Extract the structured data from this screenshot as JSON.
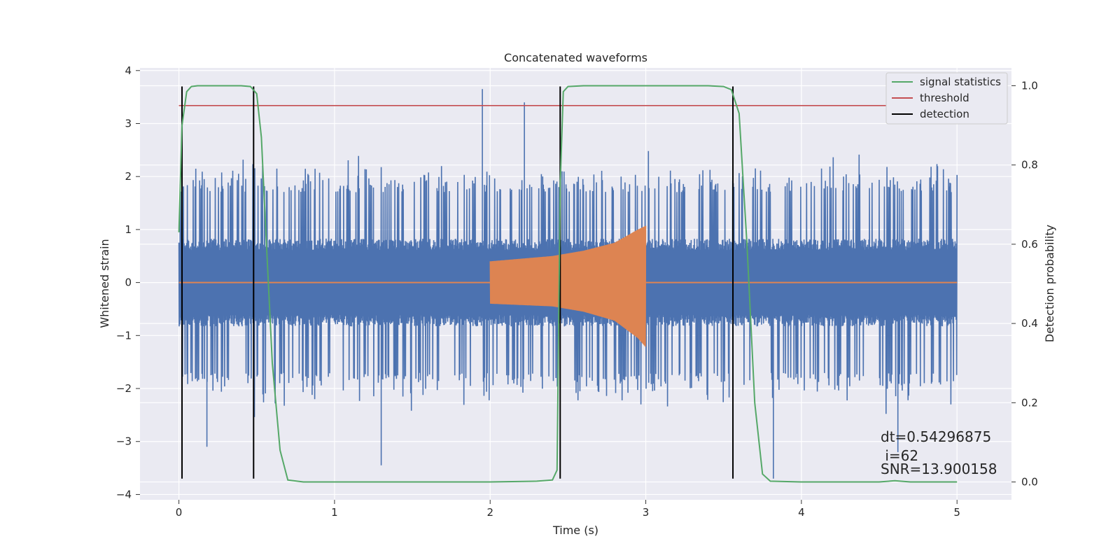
{
  "chart_data": {
    "type": "line",
    "title": "Concatenated waveforms",
    "xlabel": "Time (s)",
    "ylabel": "Whitened strain",
    "y2label": "Detection probability",
    "xlim": [
      -0.25,
      5.35
    ],
    "ylim": [
      -4.1,
      4.05
    ],
    "y2lim": [
      -0.045,
      1.045
    ],
    "x_ticks": [
      0,
      1,
      2,
      3,
      4,
      5
    ],
    "y_ticks": [
      4,
      3,
      2,
      1,
      0,
      -1,
      -2,
      -3,
      -4
    ],
    "y2_ticks": [
      1.0,
      0.8,
      0.6,
      0.4,
      0.2,
      0.0
    ],
    "grid": true,
    "legend_position": "top-right",
    "colors": {
      "strain": "#4c72b0",
      "template": "#dd8452",
      "signal_statistics": "#55a868",
      "threshold": "#c44e52",
      "detection": "#000000",
      "background": "#eaeaf2",
      "grid": "#ffffff"
    },
    "series": [
      {
        "name": "signal statistics",
        "axis": "right",
        "x": [
          0.0,
          0.02,
          0.05,
          0.08,
          0.12,
          0.2,
          0.3,
          0.4,
          0.46,
          0.5,
          0.53,
          0.56,
          0.6,
          0.65,
          0.7,
          0.8,
          1.0,
          1.5,
          2.0,
          2.3,
          2.4,
          2.43,
          2.45,
          2.47,
          2.5,
          2.6,
          3.0,
          3.4,
          3.5,
          3.55,
          3.6,
          3.65,
          3.7,
          3.75,
          3.8,
          4.0,
          4.5,
          4.6,
          4.7,
          5.0
        ],
        "y": [
          0.63,
          0.9,
          0.985,
          0.998,
          1.0,
          1.0,
          1.0,
          1.0,
          0.998,
          0.98,
          0.87,
          0.62,
          0.3,
          0.08,
          0.005,
          0.0,
          0.0,
          0.0,
          0.0,
          0.002,
          0.005,
          0.03,
          0.75,
          0.985,
          0.998,
          1.0,
          1.0,
          1.0,
          0.998,
          0.99,
          0.93,
          0.6,
          0.2,
          0.02,
          0.002,
          0.0,
          0.0,
          0.003,
          0.0,
          0.0
        ]
      },
      {
        "name": "threshold",
        "axis": "right",
        "x": [
          0.0,
          5.05
        ],
        "y": [
          0.95,
          0.95
        ]
      },
      {
        "name": "detection",
        "axis": "left",
        "times": [
          0.02,
          0.48,
          2.45,
          3.56
        ],
        "y_range": [
          -3.7,
          3.7
        ]
      },
      {
        "name": "",
        "axis": "left",
        "description_key": "whitened_strain",
        "x_range": [
          0.0,
          5.0
        ],
        "core_amplitude": 0.72,
        "typical_extreme": 2.3,
        "max_peak": 3.65,
        "min_peak": -3.45
      },
      {
        "name": "",
        "axis": "left",
        "description_key": "injected_waveform",
        "x_range": [
          2.0,
          3.0
        ],
        "envelope_x": [
          2.0,
          2.4,
          2.6,
          2.8,
          2.95,
          3.0
        ],
        "envelope_upper": [
          0.4,
          0.5,
          0.6,
          0.75,
          1.0,
          1.07
        ],
        "envelope_lower": [
          -0.4,
          -0.45,
          -0.55,
          -0.72,
          -1.05,
          -1.22
        ]
      }
    ],
    "annotations": [
      "dt=0.54296875",
      " i=62",
      "SNR=13.900158"
    ]
  }
}
